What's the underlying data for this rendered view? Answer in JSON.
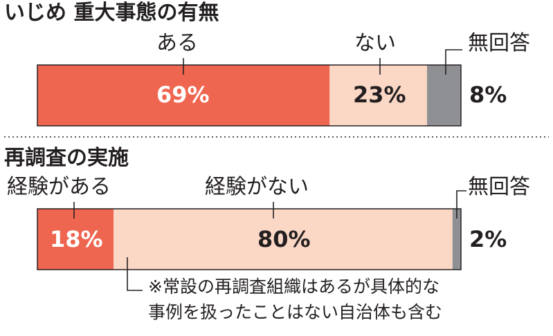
{
  "chart_data": [
    {
      "type": "bar",
      "title": "いじめ 重大事態の有無",
      "categories": [
        "ある",
        "ない",
        "無回答"
      ],
      "values": [
        69,
        23,
        8
      ],
      "value_labels": [
        "69%",
        "23%",
        "8%"
      ],
      "colors": [
        "#ef6650",
        "#fbd7c6",
        "#8e9094"
      ],
      "stacked": true,
      "xlim": [
        0,
        100
      ]
    },
    {
      "type": "bar",
      "title": "再調査の実施",
      "categories": [
        "経験がある",
        "経験がない",
        "無回答"
      ],
      "values": [
        18,
        80,
        2
      ],
      "value_labels": [
        "18%",
        "80%",
        "2%"
      ],
      "colors": [
        "#ef6650",
        "#fbd7c6",
        "#8e9094"
      ],
      "stacked": true,
      "xlim": [
        0,
        100
      ],
      "note": {
        "line1": "※常設の再調査組織はあるが具体的な",
        "line2": "事例を扱ったことはない自治体も含む"
      }
    }
  ],
  "colors": {
    "primary": "#ef6650",
    "light": "#fbd7c6",
    "gray": "#8e9094",
    "text": "#231f20"
  }
}
